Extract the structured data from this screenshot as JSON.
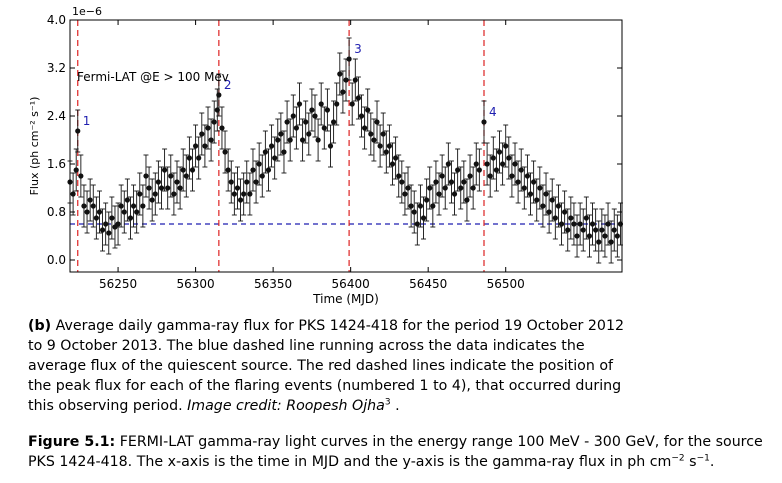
{
  "chart_data": {
    "type": "scatter",
    "title": "",
    "xlabel": "Time (MJD)",
    "ylabel": "Flux (ph cm⁻² s⁻¹)",
    "y_multiplier_label": "1e−6",
    "annotation": "Fermi-LAT @E > 100 Mev",
    "xlim": [
      56219,
      56575
    ],
    "ylim": [
      -0.2,
      4.0
    ],
    "x_ticks": [
      56250,
      56300,
      56350,
      56400,
      56450,
      56500
    ],
    "x_tick_labels": [
      "56250",
      "56300",
      "56350",
      "56400",
      "56450",
      "56500"
    ],
    "y_ticks": [
      0.0,
      0.8,
      1.6,
      2.4,
      3.2,
      4.0
    ],
    "y_tick_labels": [
      "0.0",
      "0.8",
      "1.6",
      "2.4",
      "3.2",
      "4.0"
    ],
    "grid": false,
    "quiescent_flux": 0.6,
    "quiescent_color": "#1f1fb0",
    "flare_color": "#dd2222",
    "point_color": "#111111",
    "flares": [
      {
        "label": "1",
        "x": 56224,
        "y": 2.15
      },
      {
        "label": "2",
        "x": 56315,
        "y": 2.75
      },
      {
        "label": "3",
        "x": 56399,
        "y": 3.35
      },
      {
        "label": "4",
        "x": 56486,
        "y": 2.3
      }
    ],
    "series": [
      {
        "x": [
          56219,
          56221,
          56223,
          56224,
          56226,
          56228,
          56230,
          56232,
          56234,
          56236,
          56238,
          56240,
          56242,
          56244,
          56246,
          56248,
          56250,
          56252,
          56254,
          56256,
          56258,
          56260,
          56262,
          56264,
          56266,
          56268,
          56270,
          56272,
          56274,
          56276,
          56278,
          56280,
          56282,
          56284,
          56286,
          56288,
          56290,
          56292,
          56294,
          56296,
          56298,
          56300,
          56302,
          56304,
          56306,
          56308,
          56310,
          56312,
          56314,
          56315,
          56317,
          56319,
          56321,
          56323,
          56325,
          56327,
          56329,
          56331,
          56333,
          56335,
          56337,
          56339,
          56341,
          56343,
          56345,
          56347,
          56349,
          56351,
          56353,
          56355,
          56357,
          56359,
          56361,
          56363,
          56365,
          56367,
          56369,
          56371,
          56373,
          56375,
          56377,
          56379,
          56381,
          56383,
          56385,
          56387,
          56389,
          56391,
          56393,
          56395,
          56397,
          56399,
          56401,
          56403,
          56405,
          56407,
          56409,
          56411,
          56413,
          56415,
          56417,
          56419,
          56421,
          56423,
          56425,
          56427,
          56429,
          56431,
          56433,
          56435,
          56437,
          56439,
          56441,
          56443,
          56445,
          56447,
          56449,
          56451,
          56453,
          56455,
          56457,
          56459,
          56461,
          56463,
          56465,
          56467,
          56469,
          56471,
          56473,
          56475,
          56477,
          56479,
          56481,
          56483,
          56486,
          56488,
          56490,
          56492,
          56494,
          56496,
          56498,
          56500,
          56502,
          56504,
          56506,
          56508,
          56510,
          56512,
          56514,
          56516,
          56518,
          56520,
          56522,
          56524,
          56526,
          56528,
          56530,
          56532,
          56534,
          56536,
          56538,
          56540,
          56542,
          56544,
          56546,
          56548,
          56550,
          56552,
          56554,
          56556,
          56558,
          56560,
          56562,
          56564,
          56566,
          56568,
          56570,
          56572,
          56574
        ],
        "y": [
          1.3,
          1.1,
          1.5,
          2.15,
          1.4,
          0.9,
          0.8,
          1.0,
          0.9,
          0.7,
          0.8,
          0.5,
          0.6,
          0.45,
          0.7,
          0.55,
          0.6,
          0.9,
          0.8,
          1.0,
          0.7,
          0.9,
          0.8,
          1.1,
          0.9,
          1.4,
          1.2,
          1.0,
          1.1,
          1.3,
          1.2,
          1.5,
          1.2,
          1.4,
          1.1,
          1.3,
          1.2,
          1.5,
          1.4,
          1.7,
          1.5,
          1.9,
          1.7,
          2.1,
          1.9,
          2.2,
          2.0,
          2.3,
          2.5,
          2.75,
          2.2,
          1.8,
          1.5,
          1.3,
          1.1,
          1.2,
          1.0,
          1.1,
          1.3,
          1.1,
          1.5,
          1.3,
          1.6,
          1.4,
          1.8,
          1.5,
          1.9,
          1.7,
          2.0,
          2.1,
          1.8,
          2.3,
          2.0,
          2.4,
          2.2,
          2.6,
          2.0,
          2.3,
          2.1,
          2.5,
          2.4,
          2.0,
          2.6,
          2.2,
          2.5,
          1.9,
          2.3,
          2.6,
          3.1,
          2.8,
          3.0,
          3.35,
          2.6,
          3.0,
          2.7,
          2.4,
          2.2,
          2.5,
          2.1,
          2.0,
          2.3,
          1.9,
          2.1,
          1.8,
          1.9,
          1.6,
          1.7,
          1.4,
          1.3,
          1.1,
          1.2,
          0.9,
          0.8,
          0.6,
          0.9,
          0.7,
          1.0,
          1.2,
          0.9,
          1.3,
          1.1,
          1.4,
          1.2,
          1.6,
          1.3,
          1.1,
          1.5,
          1.2,
          1.3,
          1.0,
          1.4,
          1.2,
          1.6,
          1.5,
          2.3,
          1.6,
          1.4,
          1.7,
          1.5,
          1.8,
          1.6,
          1.9,
          1.7,
          1.4,
          1.6,
          1.3,
          1.5,
          1.2,
          1.4,
          1.1,
          1.3,
          1.0,
          1.2,
          0.9,
          1.1,
          0.8,
          1.0,
          0.7,
          0.9,
          0.6,
          0.8,
          0.5,
          0.7,
          0.6,
          0.4,
          0.6,
          0.5,
          0.7,
          0.4,
          0.6,
          0.5,
          0.3,
          0.5,
          0.4,
          0.6,
          0.3,
          0.5,
          0.4,
          0.6
        ],
        "yerr": 0.35
      }
    ]
  },
  "caption_b": {
    "tag": "(b)",
    "text": " Average daily gamma-ray flux for PKS 1424-418 for the period 19 October 2012 to 9 October 2013. The blue dashed line running across the data indicates the average flux of the quiescent source. The red dashed lines indicate the position of the peak flux for each of the flaring events (numbered 1 to 4), that occurred during this observing period. ",
    "credit": "Image credit: Roopesh Ojha",
    "credit_sup": "3",
    "end": " ."
  },
  "figure_caption": {
    "tag": "Figure 5.1:",
    "text": " FERMI-LAT gamma-ray light curves in the energy range 100 MeV - 300 GeV, for the source PKS 1424-418. The x-axis is the time in MJD and the y-axis is the gamma-ray flux in ph cm",
    "sup1": "−2",
    "mid": " s",
    "sup2": "−1",
    "end": "."
  }
}
